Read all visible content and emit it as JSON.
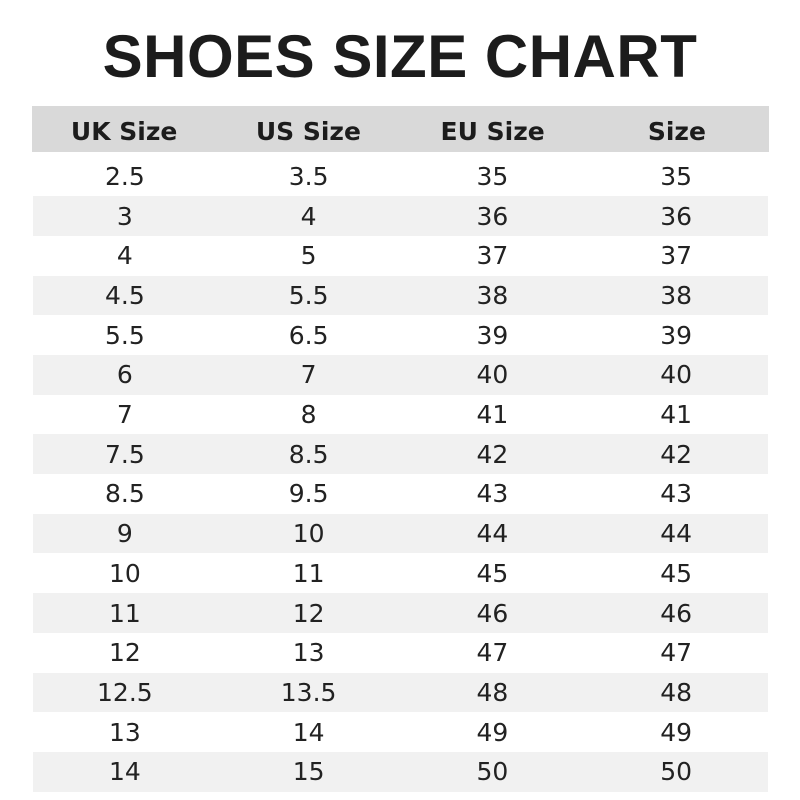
{
  "title": "SHOES SIZE CHART",
  "chart_data": {
    "type": "table",
    "title": "SHOES SIZE CHART",
    "columns": [
      "UK Size",
      "US Size",
      "EU Size",
      "Size"
    ],
    "rows": [
      [
        "2.5",
        "3.5",
        "35",
        "35"
      ],
      [
        "3",
        "4",
        "36",
        "36"
      ],
      [
        "4",
        "5",
        "37",
        "37"
      ],
      [
        "4.5",
        "5.5",
        "38",
        "38"
      ],
      [
        "5.5",
        "6.5",
        "39",
        "39"
      ],
      [
        "6",
        "7",
        "40",
        "40"
      ],
      [
        "7",
        "8",
        "41",
        "41"
      ],
      [
        "7.5",
        "8.5",
        "42",
        "42"
      ],
      [
        "8.5",
        "9.5",
        "43",
        "43"
      ],
      [
        "9",
        "10",
        "44",
        "44"
      ],
      [
        "10",
        "11",
        "45",
        "45"
      ],
      [
        "11",
        "12",
        "46",
        "46"
      ],
      [
        "12",
        "13",
        "47",
        "47"
      ],
      [
        "12.5",
        "13.5",
        "48",
        "48"
      ],
      [
        "13",
        "14",
        "49",
        "49"
      ],
      [
        "14",
        "15",
        "50",
        "50"
      ]
    ],
    "colors": {
      "header_bg": "#d9d9d9",
      "stripe_bg": "#f1f1f1"
    }
  }
}
